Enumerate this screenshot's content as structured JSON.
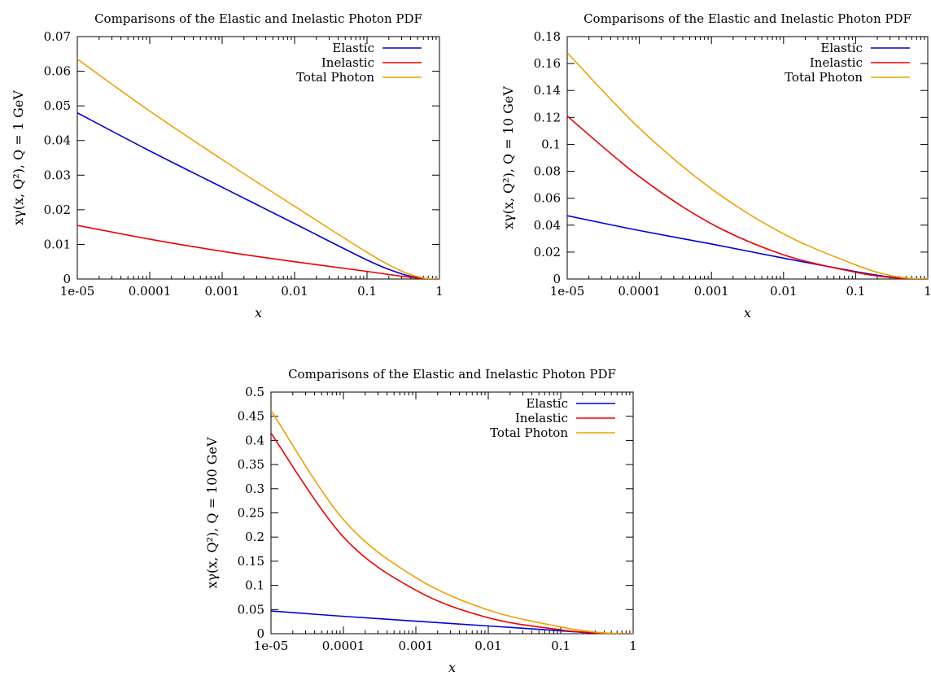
{
  "chart_data": [
    {
      "type": "line",
      "title": "Comparisons of the Elastic and Inelastic Photon PDF",
      "xlabel": "x",
      "ylabel": "xγ(x, Q²), Q = 1 GeV",
      "xscale": "log",
      "xlim": [
        1e-05,
        1
      ],
      "ylim": [
        0,
        0.07
      ],
      "grid": false,
      "legend": "top-right",
      "xtick_labels": [
        "1e-05",
        "0.0001",
        "0.001",
        "0.01",
        "0.1",
        "1"
      ],
      "xtick_values": [
        1e-05,
        0.0001,
        0.001,
        0.01,
        0.1,
        1
      ],
      "ytick_labels": [
        "0",
        "0.01",
        "0.02",
        "0.03",
        "0.04",
        "0.05",
        "0.06",
        "0.07"
      ],
      "ytick_values": [
        0,
        0.01,
        0.02,
        0.03,
        0.04,
        0.05,
        0.06,
        0.07
      ],
      "x": [
        1e-05,
        0.0001,
        0.001,
        0.01,
        0.1,
        0.3,
        0.6,
        1
      ],
      "series": [
        {
          "name": "Elastic",
          "color": "#0000dd",
          "values": [
            0.048,
            0.037,
            0.0265,
            0.016,
            0.0055,
            0.0015,
            0.0002,
            0
          ]
        },
        {
          "name": "Inelastic",
          "color": "#ee0000",
          "values": [
            0.0155,
            0.0115,
            0.008,
            0.005,
            0.0022,
            0.0008,
            0.0001,
            0
          ]
        },
        {
          "name": "Total Photon",
          "color": "#f0a000",
          "values": [
            0.0635,
            0.0485,
            0.0345,
            0.021,
            0.0077,
            0.0023,
            0.0003,
            0
          ]
        }
      ]
    },
    {
      "type": "line",
      "title": "Comparisons of the Elastic and Inelastic Photon PDF",
      "xlabel": "x",
      "ylabel": "xγ(x, Q²), Q = 10 GeV",
      "xscale": "log",
      "xlim": [
        1e-05,
        1
      ],
      "ylim": [
        0,
        0.18
      ],
      "grid": false,
      "legend": "top-right",
      "xtick_labels": [
        "1e-05",
        "0.0001",
        "0.001",
        "0.01",
        "0.1",
        "1"
      ],
      "xtick_values": [
        1e-05,
        0.0001,
        0.001,
        0.01,
        0.1,
        1
      ],
      "ytick_labels": [
        "0",
        "0.02",
        "0.04",
        "0.06",
        "0.08",
        "0.1",
        "0.12",
        "0.14",
        "0.16",
        "0.18"
      ],
      "ytick_values": [
        0,
        0.02,
        0.04,
        0.06,
        0.08,
        0.1,
        0.12,
        0.14,
        0.16,
        0.18
      ],
      "x": [
        1e-05,
        0.0001,
        0.001,
        0.01,
        0.1,
        0.3,
        0.6,
        1
      ],
      "series": [
        {
          "name": "Elastic",
          "color": "#0000dd",
          "values": [
            0.047,
            0.036,
            0.026,
            0.0155,
            0.0055,
            0.0015,
            0.0002,
            0
          ]
        },
        {
          "name": "Inelastic",
          "color": "#ee0000",
          "values": [
            0.121,
            0.076,
            0.041,
            0.018,
            0.005,
            0.0012,
            0.0002,
            0
          ]
        },
        {
          "name": "Total Photon",
          "color": "#f0a000",
          "values": [
            0.168,
            0.112,
            0.067,
            0.0335,
            0.0105,
            0.0027,
            0.0004,
            0
          ]
        }
      ]
    },
    {
      "type": "line",
      "title": "Comparisons of the Elastic and Inelastic Photon PDF",
      "xlabel": "x",
      "ylabel": "xγ(x, Q²), Q = 100 GeV",
      "xscale": "log",
      "xlim": [
        1e-05,
        1
      ],
      "ylim": [
        0,
        0.5
      ],
      "grid": false,
      "legend": "top-right",
      "xtick_labels": [
        "1e-05",
        "0.0001",
        "0.001",
        "0.01",
        "0.1",
        "1"
      ],
      "xtick_values": [
        1e-05,
        0.0001,
        0.001,
        0.01,
        0.1,
        1
      ],
      "ytick_labels": [
        "0",
        "0.05",
        "0.1",
        "0.15",
        "0.2",
        "0.25",
        "0.3",
        "0.35",
        "0.4",
        "0.45",
        "0.5"
      ],
      "ytick_values": [
        0,
        0.05,
        0.1,
        0.15,
        0.2,
        0.25,
        0.3,
        0.35,
        0.4,
        0.45,
        0.5
      ],
      "x": [
        1e-05,
        0.0001,
        0.001,
        0.01,
        0.1,
        0.3,
        0.6,
        1
      ],
      "series": [
        {
          "name": "Elastic",
          "color": "#0000dd",
          "values": [
            0.047,
            0.036,
            0.026,
            0.016,
            0.006,
            0.0015,
            0.0002,
            0
          ]
        },
        {
          "name": "Inelastic",
          "color": "#ee0000",
          "values": [
            0.415,
            0.2,
            0.09,
            0.033,
            0.008,
            0.0018,
            0.0002,
            0
          ]
        },
        {
          "name": "Total Photon",
          "color": "#f0a000",
          "values": [
            0.462,
            0.236,
            0.116,
            0.049,
            0.014,
            0.0033,
            0.0004,
            0
          ]
        }
      ]
    }
  ]
}
